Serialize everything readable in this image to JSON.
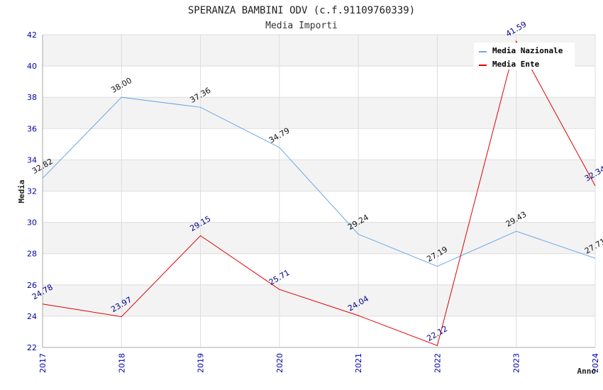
{
  "chart_data": {
    "type": "line",
    "title": "SPERANZA BAMBINI ODV (c.f.91109760339)",
    "subtitle": "Media Importi",
    "xlabel": "Anno",
    "ylabel": "Media",
    "x": [
      "2017",
      "2018",
      "2019",
      "2020",
      "2021",
      "2022",
      "2023",
      "2024"
    ],
    "ylim": [
      22,
      42
    ],
    "yticks": [
      22,
      24,
      26,
      28,
      30,
      32,
      34,
      36,
      38,
      40,
      42
    ],
    "grid": true,
    "legend_position": "top-right",
    "series": [
      {
        "name": "Media Nazionale",
        "color": "#6aa8e8",
        "values": [
          32.82,
          38.0,
          37.36,
          34.79,
          29.24,
          27.19,
          29.43,
          27.71
        ],
        "labels": [
          "32.82",
          "38.00",
          "37.36",
          "34.79",
          "29.24",
          "27.19",
          "29.43",
          "27.71"
        ]
      },
      {
        "name": "Media Ente",
        "color": "#e00000",
        "values": [
          24.78,
          23.97,
          29.15,
          25.71,
          24.04,
          22.12,
          41.59,
          32.34
        ],
        "labels": [
          "24.78",
          "23.97",
          "29.15",
          "25.71",
          "24.04",
          "22.12",
          "41.59",
          "32.34"
        ]
      }
    ]
  }
}
